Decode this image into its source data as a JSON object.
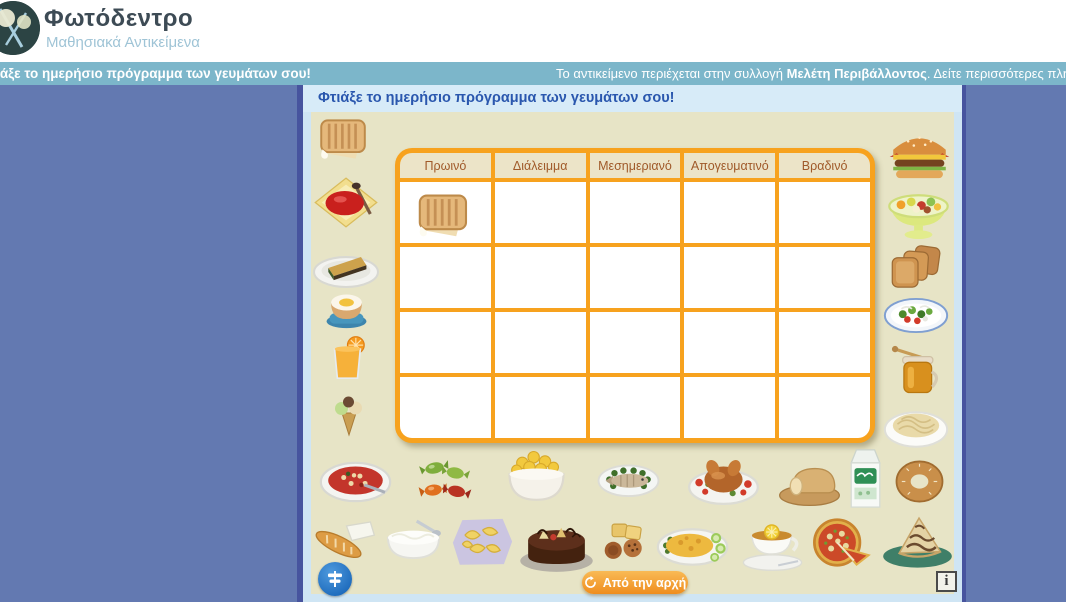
{
  "brand": {
    "title": "Φωτόδεντρο",
    "subtitle": "Μαθησιακά Αντικείμενα",
    "logo": "photodentro-tree-logo"
  },
  "topbar": {
    "activity_title": "Φτιάξε το ημερήσιο πρόγραμμα των γευμάτων σου!",
    "collection_notice_prefix": "Το αντικείμενο περιέχεται στην συλλογή ",
    "collection_name": "Μελέτη Περιβάλλοντος",
    "collection_notice_suffix": ". Δείτε περισσότερες πληροφορίες"
  },
  "activity": {
    "title": "Φτιάξε το ημερήσιο πρόγραμμα των γευμάτων σου!",
    "table": {
      "headers": [
        "Πρωινό",
        "Διάλειμμα",
        "Μεσημεριανό",
        "Απογευματινό",
        "Βραδινό"
      ],
      "rows": 4,
      "cols": 5,
      "placed_items": [
        {
          "row": 0,
          "col": 0,
          "food": "toast"
        }
      ]
    },
    "food_items": {
      "left_column": [
        {
          "id": "toast",
          "name": "toast-sandwich"
        },
        {
          "id": "jam",
          "name": "jam-plate"
        },
        {
          "id": "pie",
          "name": "pie-slice"
        },
        {
          "id": "egg",
          "name": "boiled-egg"
        },
        {
          "id": "juice",
          "name": "orange-juice"
        },
        {
          "id": "icecream",
          "name": "ice-cream-cone"
        }
      ],
      "right_column": [
        {
          "id": "burger",
          "name": "cheeseburger"
        },
        {
          "id": "fruitsalad",
          "name": "fruit-salad"
        },
        {
          "id": "rusks",
          "name": "rusks"
        },
        {
          "id": "salad",
          "name": "green-salad"
        },
        {
          "id": "honey",
          "name": "honey-jar"
        },
        {
          "id": "spaghetti",
          "name": "spaghetti-plate"
        }
      ],
      "bottom_row_1": [
        {
          "id": "soup",
          "name": "bean-soup"
        },
        {
          "id": "candies",
          "name": "candies"
        },
        {
          "id": "cornflakes",
          "name": "cornflakes-bowl"
        },
        {
          "id": "fish",
          "name": "grilled-fish"
        },
        {
          "id": "chicken",
          "name": "roast-chicken"
        },
        {
          "id": "bread",
          "name": "bread-loaf"
        },
        {
          "id": "milk",
          "name": "milk-carton"
        },
        {
          "id": "koulouri",
          "name": "sesame-bread-ring"
        }
      ],
      "bottom_row_2": [
        {
          "id": "baguettefeta",
          "name": "baguette-and-cheese"
        },
        {
          "id": "yogurt",
          "name": "yogurt-bowl"
        },
        {
          "id": "chips",
          "name": "potato-chips"
        },
        {
          "id": "choccake",
          "name": "chocolate-cake"
        },
        {
          "id": "cookies",
          "name": "cookies"
        },
        {
          "id": "omelette",
          "name": "omelette-plate"
        },
        {
          "id": "tea",
          "name": "tea-cup"
        },
        {
          "id": "pizza",
          "name": "pizza"
        },
        {
          "id": "cakeslice",
          "name": "cake-slice"
        }
      ]
    },
    "buttons": {
      "reset": {
        "label": "Από την αρχή",
        "icon": "refresh-icon"
      },
      "accessibility": {
        "icon": "signpost-icon"
      },
      "info": {
        "label": "i",
        "icon": "info-icon"
      }
    }
  },
  "colors": {
    "page_background": "#6379b1",
    "topbar": "#7cb6ca",
    "panel_frame": "#cfe5f4",
    "panel_edge": "#47549e",
    "panel_title_bg": "#d7ebf8",
    "panel_title_text": "#2a57ae",
    "content_background": "#e7e4c6",
    "table_orange": "#f7a21e",
    "table_header_bg": "#ece4c8",
    "table_header_text": "#a05a2a",
    "reset_button": "#ef8d1f",
    "accessibility_button": "#2d7fd0"
  }
}
